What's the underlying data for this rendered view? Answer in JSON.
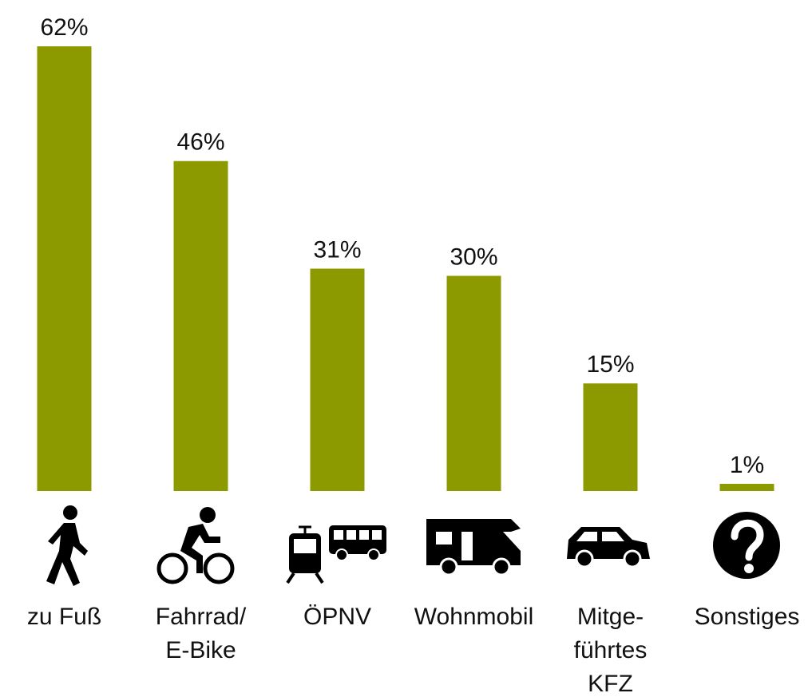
{
  "chart_data": {
    "type": "bar",
    "categories": [
      "zu Fuß",
      "Fahrrad/\nE-Bike",
      "ÖPNV",
      "Wohnmobil",
      "Mitge-\nführtes\nKFZ",
      "Sonstiges"
    ],
    "values": [
      62,
      46,
      31,
      30,
      15,
      1
    ],
    "value_labels": [
      "62%",
      "46%",
      "31%",
      "30%",
      "15%",
      "1%"
    ],
    "color": "#8c9a00"
  }
}
